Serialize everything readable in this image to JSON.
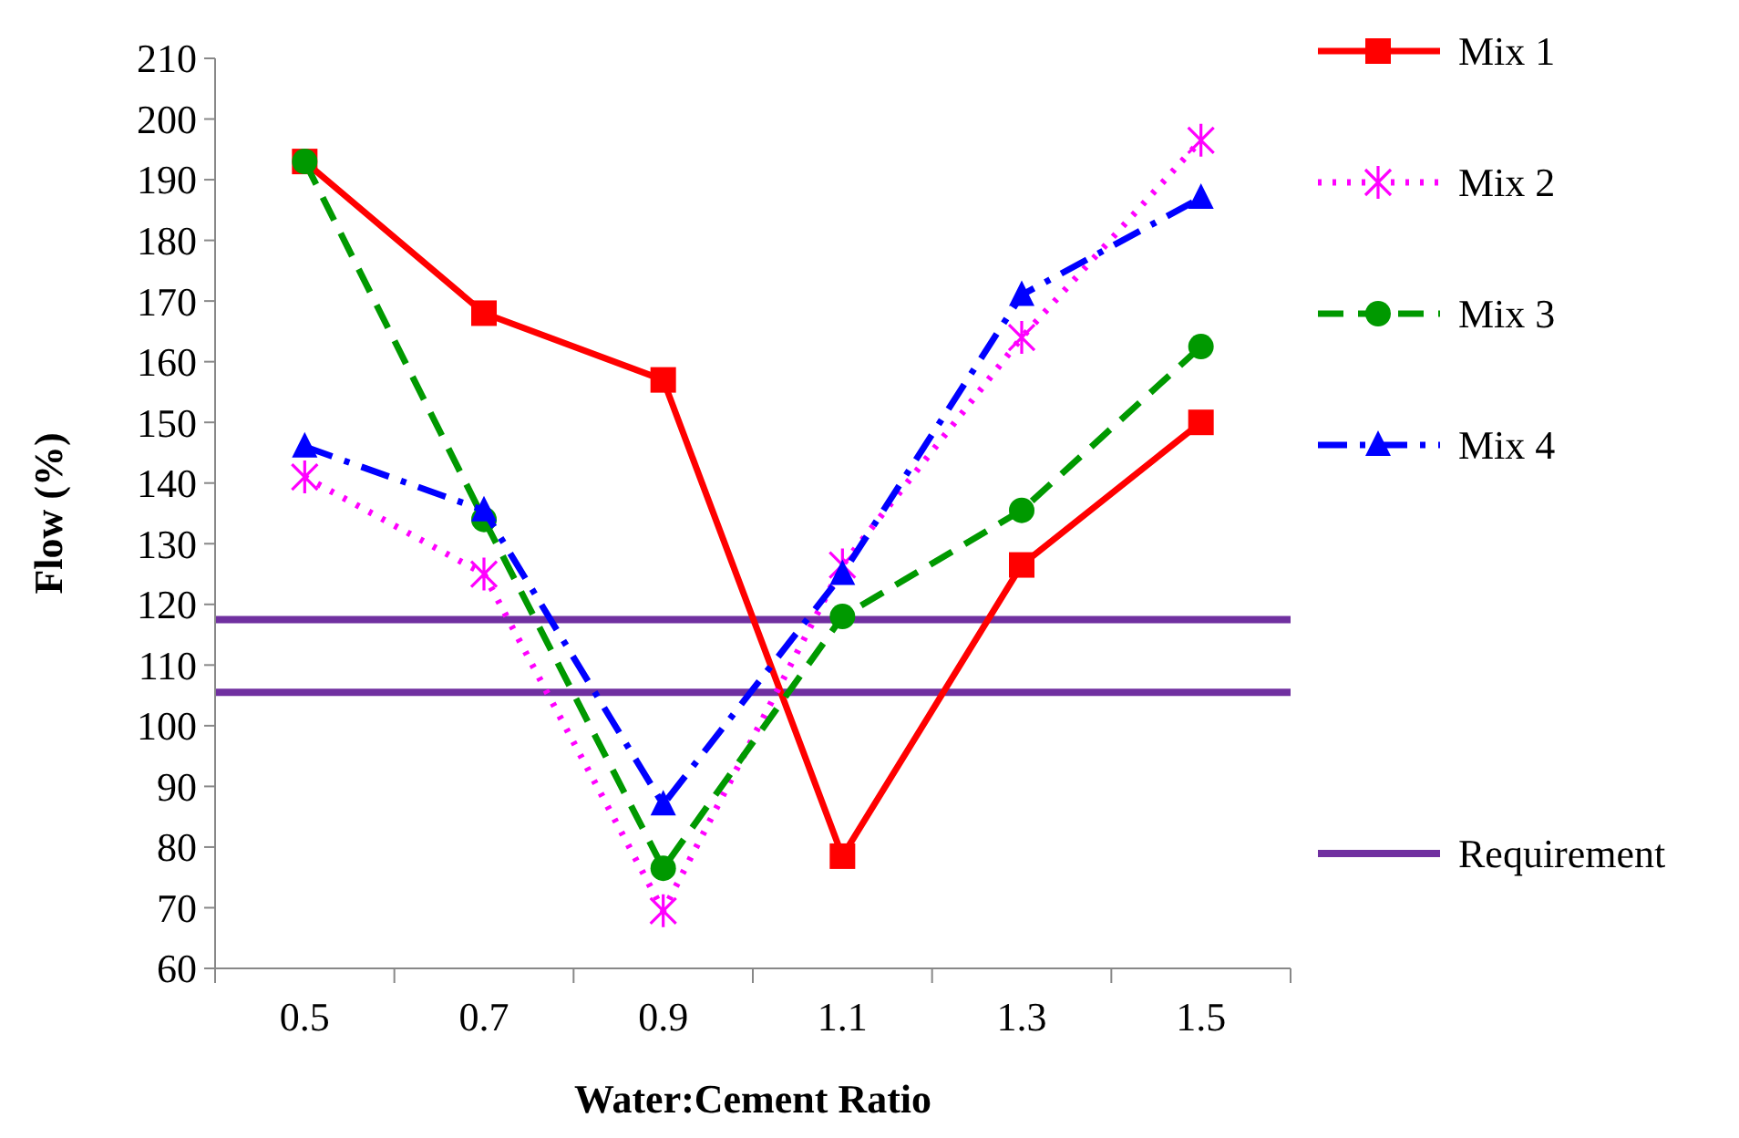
{
  "chart_data": {
    "type": "line",
    "xlabel": "Water:Cement Ratio",
    "ylabel": "Flow (%)",
    "categories": [
      "0.5",
      "0.7",
      "0.9",
      "1.1",
      "1.3",
      "1.5"
    ],
    "series": [
      {
        "name": "Mix 1",
        "color": "#ff0000",
        "marker": "square",
        "line_style": "solid",
        "values": [
          193,
          168,
          157,
          78.5,
          126.5,
          150
        ]
      },
      {
        "name": "Mix 2",
        "color": "#ff00ff",
        "marker": "cross",
        "line_style": "dotted",
        "values": [
          141,
          125,
          69.5,
          126.5,
          164,
          196.5
        ]
      },
      {
        "name": "Mix 3",
        "color": "#009900",
        "marker": "circle",
        "line_style": "dashed",
        "values": [
          193,
          134,
          76.5,
          118,
          135.5,
          162.5
        ]
      },
      {
        "name": "Mix 4",
        "color": "#0000ff",
        "marker": "triangle",
        "line_style": "dashdot",
        "values": [
          146,
          135.5,
          87,
          125,
          171,
          187
        ]
      }
    ],
    "ref_lines": [
      {
        "axis": "y",
        "value": 117.5,
        "label": "Requirement",
        "color": "#7030a0"
      },
      {
        "axis": "y",
        "value": 105.5,
        "color": "#7030a0"
      }
    ],
    "ylim": [
      60,
      210
    ],
    "yticks": [
      60,
      70,
      80,
      90,
      100,
      110,
      120,
      130,
      140,
      150,
      160,
      170,
      180,
      190,
      200,
      210
    ],
    "grid": false,
    "legend": "right"
  }
}
